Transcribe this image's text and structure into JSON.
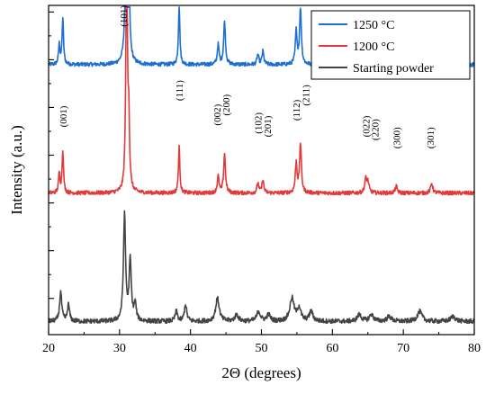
{
  "chart_data": {
    "type": "line",
    "title": "",
    "xlabel": "2Θ (degrees)",
    "ylabel": "Intensity (a.u.)",
    "xlim": [
      20,
      80
    ],
    "x_ticks": [
      "20",
      "30",
      "40",
      "50",
      "60",
      "70",
      "80"
    ],
    "y_tick_labels_shown": false,
    "grid": false,
    "legend": {
      "placement": "top-right",
      "entries": [
        "1250 °C",
        "1200 °C",
        "Starting powder"
      ]
    },
    "series": [
      {
        "name": "1250 °C",
        "color": "#1f6fd1",
        "baseline": 0.82,
        "noise": 0.012,
        "peaks": [
          {
            "x": 21.5,
            "h": 0.06,
            "w": 0.12
          },
          {
            "x": 22.0,
            "h": 0.14,
            "w": 0.12
          },
          {
            "x": 31.0,
            "h": 0.95,
            "w": 0.13
          },
          {
            "x": 31.3,
            "h": 0.25,
            "w": 0.12
          },
          {
            "x": 38.4,
            "h": 0.18,
            "w": 0.12
          },
          {
            "x": 43.9,
            "h": 0.06,
            "w": 0.15
          },
          {
            "x": 44.8,
            "h": 0.13,
            "w": 0.15
          },
          {
            "x": 49.5,
            "h": 0.03,
            "w": 0.15
          },
          {
            "x": 50.2,
            "h": 0.04,
            "w": 0.15
          },
          {
            "x": 54.9,
            "h": 0.1,
            "w": 0.15
          },
          {
            "x": 55.5,
            "h": 0.17,
            "w": 0.15
          },
          {
            "x": 64.7,
            "h": 0.04,
            "w": 0.18
          },
          {
            "x": 65.0,
            "h": 0.03,
            "w": 0.18
          },
          {
            "x": 69.0,
            "h": 0.02,
            "w": 0.18
          },
          {
            "x": 74.0,
            "h": 0.03,
            "w": 0.18
          }
        ]
      },
      {
        "name": "1200 °C",
        "color": "#e03a3a",
        "baseline": 0.43,
        "noise": 0.012,
        "peaks": [
          {
            "x": 21.5,
            "h": 0.06,
            "w": 0.12
          },
          {
            "x": 22.0,
            "h": 0.13,
            "w": 0.12
          },
          {
            "x": 31.0,
            "h": 0.75,
            "w": 0.13
          },
          {
            "x": 31.3,
            "h": 0.2,
            "w": 0.12
          },
          {
            "x": 38.4,
            "h": 0.14,
            "w": 0.12
          },
          {
            "x": 43.9,
            "h": 0.05,
            "w": 0.15
          },
          {
            "x": 44.8,
            "h": 0.12,
            "w": 0.15
          },
          {
            "x": 49.5,
            "h": 0.03,
            "w": 0.15
          },
          {
            "x": 50.2,
            "h": 0.04,
            "w": 0.15
          },
          {
            "x": 54.9,
            "h": 0.09,
            "w": 0.15
          },
          {
            "x": 55.5,
            "h": 0.15,
            "w": 0.15
          },
          {
            "x": 64.7,
            "h": 0.04,
            "w": 0.18
          },
          {
            "x": 65.0,
            "h": 0.03,
            "w": 0.18
          },
          {
            "x": 69.0,
            "h": 0.02,
            "w": 0.18
          },
          {
            "x": 74.0,
            "h": 0.03,
            "w": 0.18
          }
        ]
      },
      {
        "name": "Starting powder",
        "color": "#444444",
        "baseline": 0.04,
        "noise": 0.014,
        "peaks": [
          {
            "x": 21.7,
            "h": 0.09,
            "w": 0.18
          },
          {
            "x": 22.8,
            "h": 0.05,
            "w": 0.18
          },
          {
            "x": 30.7,
            "h": 0.32,
            "w": 0.18
          },
          {
            "x": 31.5,
            "h": 0.18,
            "w": 0.18
          },
          {
            "x": 32.2,
            "h": 0.05,
            "w": 0.18
          },
          {
            "x": 38.0,
            "h": 0.03,
            "w": 0.2
          },
          {
            "x": 39.3,
            "h": 0.05,
            "w": 0.2
          },
          {
            "x": 43.8,
            "h": 0.07,
            "w": 0.3
          },
          {
            "x": 46.5,
            "h": 0.02,
            "w": 0.3
          },
          {
            "x": 49.6,
            "h": 0.03,
            "w": 0.3
          },
          {
            "x": 51.0,
            "h": 0.02,
            "w": 0.3
          },
          {
            "x": 54.3,
            "h": 0.07,
            "w": 0.35
          },
          {
            "x": 55.3,
            "h": 0.04,
            "w": 0.3
          },
          {
            "x": 57.0,
            "h": 0.03,
            "w": 0.3
          },
          {
            "x": 63.8,
            "h": 0.02,
            "w": 0.35
          },
          {
            "x": 65.5,
            "h": 0.02,
            "w": 0.35
          },
          {
            "x": 68.0,
            "h": 0.015,
            "w": 0.35
          },
          {
            "x": 72.3,
            "h": 0.03,
            "w": 0.4
          },
          {
            "x": 77.0,
            "h": 0.015,
            "w": 0.4
          }
        ]
      }
    ],
    "annotations": [
      {
        "text": "(001)",
        "x": 22.0
      },
      {
        "text": "(101)",
        "x": 30.5
      },
      {
        "text": "(111)",
        "x": 38.4
      },
      {
        "text": "(002)",
        "x": 43.7
      },
      {
        "text": "(200)",
        "x": 45.0
      },
      {
        "text": "(102)",
        "x": 49.5
      },
      {
        "text": "(201)",
        "x": 50.8
      },
      {
        "text": "(112)",
        "x": 54.9
      },
      {
        "text": "(211)",
        "x": 56.2
      },
      {
        "text": "(022)",
        "x": 64.7
      },
      {
        "text": "(220)",
        "x": 66.0
      },
      {
        "text": "(300)",
        "x": 69.0
      },
      {
        "text": "(301)",
        "x": 73.8
      }
    ]
  }
}
